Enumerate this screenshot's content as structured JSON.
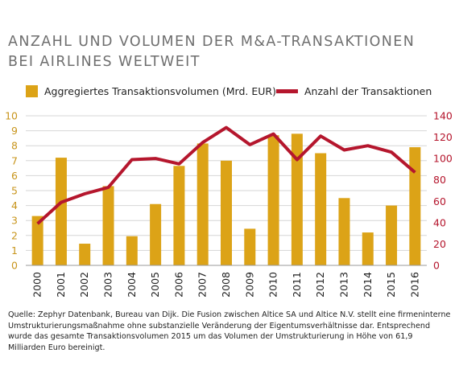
{
  "title": {
    "line1": "ANZAHL UND VOLUMEN DER M&A-TRANSAKTIONEN",
    "line2": "BEI AIRLINES WELTWEIT"
  },
  "legend": {
    "bar_label": "Aggregiertes Transaktionsvolumen (Mrd. EUR)",
    "line_label": "Anzahl der Transaktionen"
  },
  "colors": {
    "bar": "#dca317",
    "line": "#b5162d",
    "left_axis": "#c8951c",
    "right_axis": "#b5162d",
    "grid": "#d6d6d6"
  },
  "chart_data": {
    "type": "bar",
    "categories": [
      "2000",
      "2001",
      "2002",
      "2003",
      "2004",
      "2005",
      "2006",
      "2007",
      "2008",
      "2009",
      "2010",
      "2011",
      "2012",
      "2013",
      "2014",
      "2015",
      "2016"
    ],
    "series": [
      {
        "name": "Aggregiertes Transaktionsvolumen (Mrd. EUR)",
        "type": "bar",
        "axis": "left",
        "values": [
          3.3,
          7.2,
          1.45,
          5.3,
          1.95,
          4.1,
          6.65,
          8.15,
          7.0,
          2.45,
          8.7,
          8.8,
          7.5,
          4.5,
          2.2,
          4.0,
          7.9
        ]
      },
      {
        "name": "Anzahl der Transaktionen",
        "type": "line",
        "axis": "right",
        "values": [
          39,
          59,
          67,
          73,
          99,
          100,
          95,
          115,
          129,
          113,
          123,
          99,
          121,
          108,
          112,
          106,
          87
        ]
      }
    ],
    "ylim_left": [
      0,
      10
    ],
    "yticks_left": [
      "0",
      "1",
      "2",
      "3",
      "4",
      "5",
      "6",
      "7",
      "8",
      "9",
      "10"
    ],
    "ylim_right": [
      0,
      140
    ],
    "yticks_right": [
      "0",
      "20",
      "40",
      "60",
      "80",
      "100",
      "120",
      "140"
    ],
    "grid": true,
    "legend_position": "top"
  },
  "source": "Quelle: Zephyr Datenbank, Bureau van Dijk. Die Fusion zwischen Altice SA und Altice N.V. stellt eine firmen­interne Umstrukturierungsmaßnahme ohne substanzielle Veränderung der Eigentumsverhältnisse dar. Ent­sprechend wurde das gesamte Transaktionsvolumen 2015 um das Volumen der Umstrukturierung in Höhe von 61,9 Milliarden Euro bereinigt."
}
